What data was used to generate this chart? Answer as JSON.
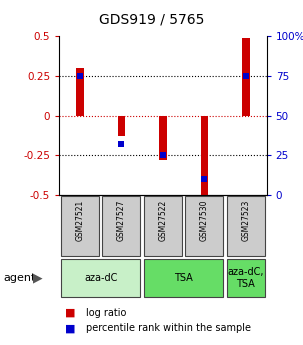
{
  "title": "GDS919 / 5765",
  "samples": [
    "GSM27521",
    "GSM27527",
    "GSM27522",
    "GSM27530",
    "GSM27523"
  ],
  "log_ratio": [
    0.3,
    -0.13,
    -0.28,
    -0.52,
    0.49
  ],
  "pct_rank_raw": [
    75,
    32,
    25,
    10,
    75
  ],
  "ylim": [
    -0.5,
    0.5
  ],
  "y2lim": [
    0,
    100
  ],
  "yticks": [
    -0.5,
    -0.25,
    0,
    0.25,
    0.5
  ],
  "y2ticks": [
    0,
    25,
    50,
    75,
    100
  ],
  "dotted_lines_black": [
    -0.25,
    0.25
  ],
  "dotted_line_red": 0,
  "bar_color": "#cc0000",
  "dot_color": "#0000cc",
  "agent_groups": [
    {
      "label": "aza-dC",
      "span": [
        0,
        2
      ],
      "color": "#c8f0c8"
    },
    {
      "label": "TSA",
      "span": [
        2,
        4
      ],
      "color": "#66dd66"
    },
    {
      "label": "aza-dC,\nTSA",
      "span": [
        4,
        5
      ],
      "color": "#66dd66"
    }
  ],
  "bar_width": 0.18,
  "sample_bg": "#cccccc",
  "legend_items": [
    {
      "color": "#cc0000",
      "label": "log ratio"
    },
    {
      "color": "#0000cc",
      "label": "percentile rank within the sample"
    }
  ]
}
